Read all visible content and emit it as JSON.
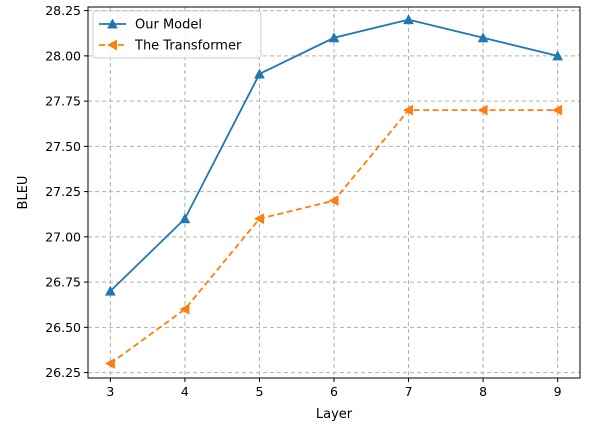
{
  "chart_data": {
    "type": "line",
    "title": "",
    "xlabel": "Layer",
    "ylabel": "BLEU",
    "x": [
      3,
      4,
      5,
      6,
      7,
      8,
      9
    ],
    "xlim": [
      2.7,
      9.3
    ],
    "ylim": [
      26.22,
      28.27
    ],
    "xticks": [
      "3",
      "4",
      "5",
      "6",
      "7",
      "8",
      "9"
    ],
    "yticks": [
      "26.25",
      "26.50",
      "26.75",
      "27.00",
      "27.25",
      "27.50",
      "27.75",
      "28.00",
      "28.25"
    ],
    "grid": true,
    "legend_position": "top-left",
    "series": [
      {
        "name": "Our Model",
        "values": [
          26.7,
          27.1,
          27.9,
          28.1,
          28.2,
          28.1,
          28.0
        ],
        "color": "#1f77b4",
        "line_style": "solid",
        "marker": "triangle-up"
      },
      {
        "name": "The Transformer",
        "values": [
          26.3,
          26.6,
          27.1,
          27.2,
          27.7,
          27.7,
          27.7
        ],
        "color": "#ff7f0e",
        "line_style": "dashed",
        "marker": "triangle-left"
      }
    ]
  }
}
